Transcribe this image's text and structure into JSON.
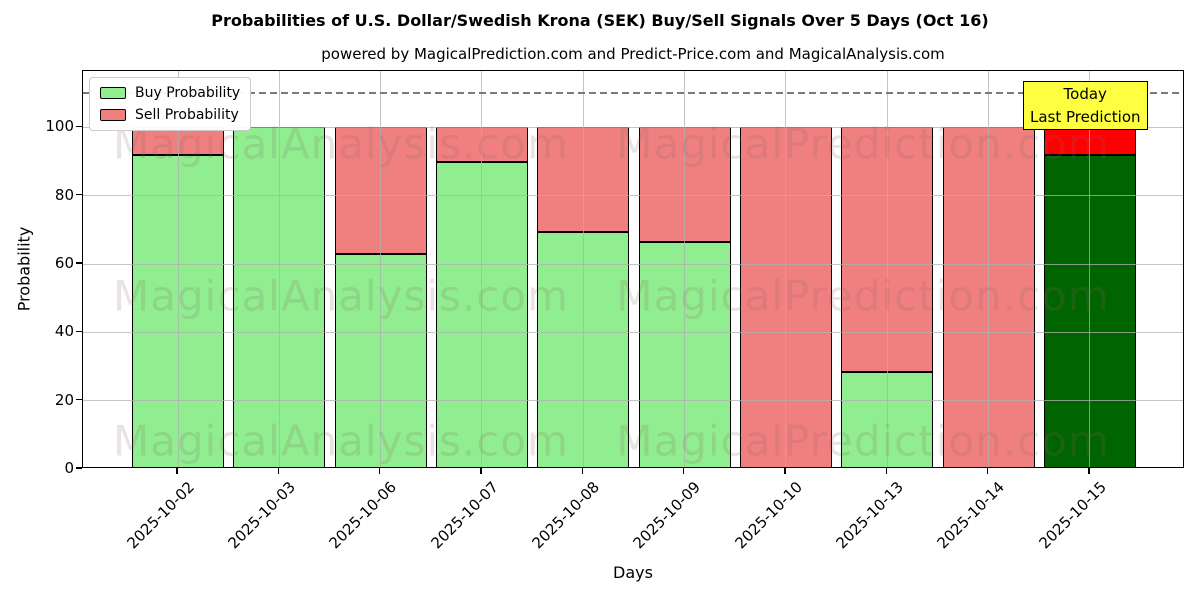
{
  "chart_data": {
    "type": "bar",
    "stacked": true,
    "title": "Probabilities of U.S. Dollar/Swedish Krona (SEK) Buy/Sell Signals Over 5 Days (Oct 16)",
    "subtitle": "powered by MagicalPrediction.com and Predict-Price.com and MagicalAnalysis.com",
    "xlabel": "Days",
    "ylabel": "Probability",
    "ylim": [
      0,
      116.5
    ],
    "yticks": [
      0,
      20,
      40,
      60,
      80,
      100
    ],
    "grid": true,
    "legend_position": "upper-left",
    "categories": [
      "2025-10-02",
      "2025-10-03",
      "2025-10-06",
      "2025-10-07",
      "2025-10-08",
      "2025-10-09",
      "2025-10-10",
      "2025-10-13",
      "2025-10-14",
      "2025-10-15"
    ],
    "series": [
      {
        "name": "Buy Probability",
        "color": "#90EE90",
        "last_bar_color": "#006400",
        "values": [
          92,
          100,
          63,
          90,
          69.5,
          66.5,
          0,
          28.5,
          0,
          92
        ]
      },
      {
        "name": "Sell Probability",
        "color": "#F08080",
        "last_bar_color": "#FF0000",
        "values": [
          8,
          0,
          37,
          10,
          30.5,
          33.5,
          100,
          71.5,
          100,
          8
        ]
      }
    ],
    "threshold_line": {
      "y": 110,
      "style": "dashed",
      "color": "#7a7a7a"
    },
    "annotation": {
      "line1": "Today",
      "line2": "Last Prediction",
      "bg_color": "#FFFF42",
      "attached_category": "2025-10-15"
    },
    "watermarks": {
      "left": "MagicalAnalysis.com",
      "right": "MagicalPrediction.com"
    },
    "bar_edge_color": "#000000"
  }
}
